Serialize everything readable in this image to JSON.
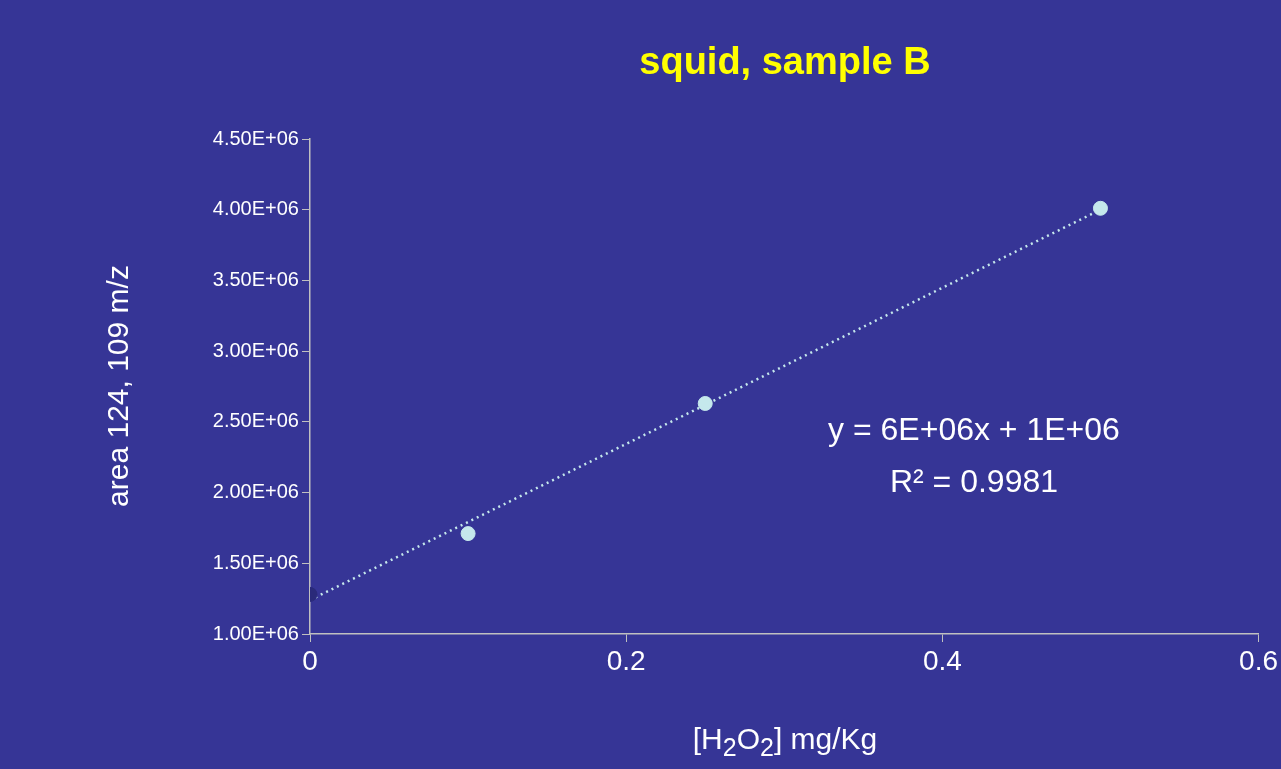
{
  "chart_data": {
    "type": "scatter",
    "title": "squid, sample B",
    "xlabel": "[H$_{2}$O$_{2}$] mg/Kg",
    "ylabel": "area 124, 109 m/z",
    "xlim": [
      0,
      0.6
    ],
    "xticks": [
      0,
      0.2,
      0.4,
      0.6
    ],
    "ylim": [
      1000000,
      4500000
    ],
    "yticks": [
      {
        "value": 1000000,
        "label": "1.00E+06"
      },
      {
        "value": 1500000,
        "label": "1.50E+06"
      },
      {
        "value": 2000000,
        "label": "2.00E+06"
      },
      {
        "value": 2500000,
        "label": "2.50E+06"
      },
      {
        "value": 3000000,
        "label": "3.00E+06"
      },
      {
        "value": 3500000,
        "label": "3.50E+06"
      },
      {
        "value": 4000000,
        "label": "4.00E+06"
      },
      {
        "value": 4500000,
        "label": "4.50E+06"
      }
    ],
    "grid": false,
    "series": [
      {
        "marker": "circle",
        "colors": [
          "#2a2a7a",
          "#c5e8ec",
          "#c5e8ec",
          "#c5e8ec"
        ],
        "x": [
          0,
          0.1,
          0.25,
          0.5
        ],
        "values": [
          1280000,
          1710000,
          2630000,
          4010000
        ]
      },
      {
        "type": "line",
        "marker": "none",
        "line_style": "dotted",
        "color": "#c5e8ec",
        "x": [
          0,
          0.5
        ],
        "values": [
          1240000,
          4000000
        ]
      }
    ],
    "annotations": [
      "y = 6E+06x + 1E+06",
      "R² = 0.9981"
    ]
  }
}
